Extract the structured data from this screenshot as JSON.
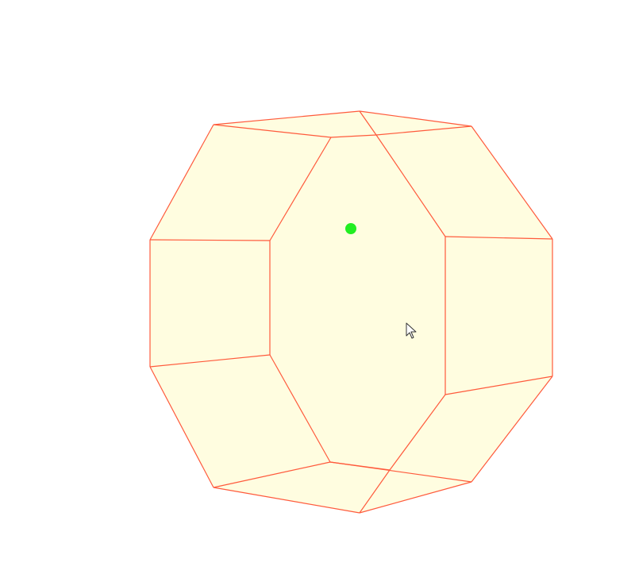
{
  "scene": {
    "background_color": "#ffffff",
    "solid": {
      "shape": "polyhedron",
      "face_color": "#fffde0",
      "edge_color": "#ff5a3c"
    },
    "vertex_marker": {
      "color": "#22ee22"
    }
  },
  "cursor": {
    "icon": "mouse-pointer-icon"
  }
}
